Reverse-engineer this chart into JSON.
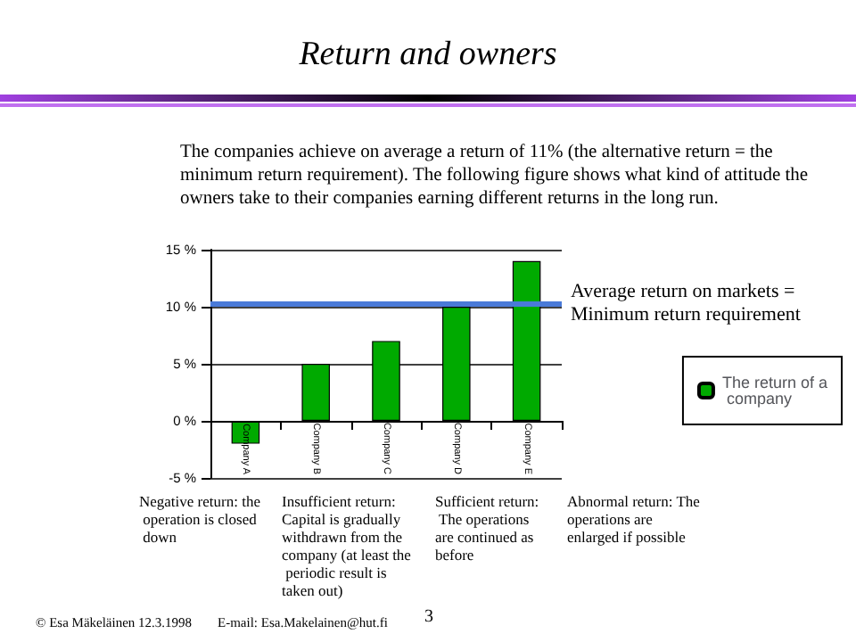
{
  "chart_data": {
    "type": "bar",
    "title": "Return and owners",
    "subtitle": "The companies achieve on average a return of 11% (the alternative return = the minimum return requirement). The following figure shows what kind of attitude the owners take to their companies earning different returns in the long run.",
    "categories": [
      "Company A",
      "Company B",
      "Company C",
      "Company D",
      "Company E"
    ],
    "series": [
      {
        "name": "The return of a company",
        "color": "#00aa00",
        "values": [
          -2,
          5,
          7,
          10,
          14
        ]
      }
    ],
    "ylim": [
      -5,
      15
    ],
    "yticks": [
      {
        "value": -5,
        "label": "-5 %"
      },
      {
        "value": 0,
        "label": "0 %"
      },
      {
        "value": 5,
        "label": "5 %"
      },
      {
        "value": 10,
        "label": "10 %"
      },
      {
        "value": 15,
        "label": "15 %"
      }
    ],
    "ref_lines": [
      {
        "axis": "y",
        "value": 10.3,
        "label": "Average return on markets = Minimum return requirement",
        "color": "#4a7ad8"
      }
    ],
    "grid": "y",
    "legend": "right",
    "annotations": [
      "Negative return: the operation is closed down",
      "Insufficient return: Capital is gradually withdrawn from the company (at least the periodic result is taken out)",
      "Sufficient return: The operations are continued as before",
      "Abnormal return: The operations are enlarged if possible",
      "© Esa Mäkeläinen 12.3.1998",
      "E-mail: Esa.Makelainen@hut.fi",
      "3"
    ]
  }
}
